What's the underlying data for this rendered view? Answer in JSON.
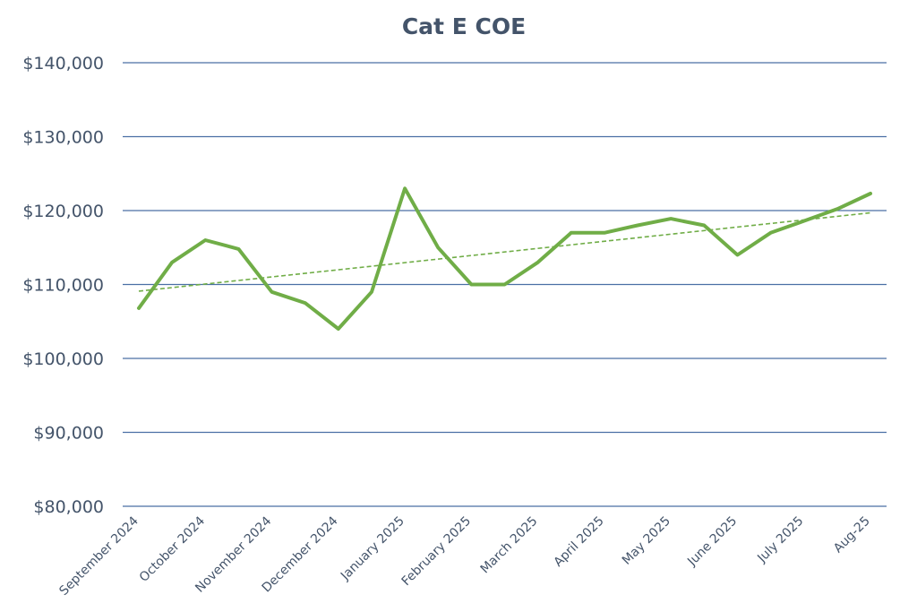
{
  "chart_data": {
    "type": "line",
    "title": "Cat E COE",
    "xlabel": "",
    "ylabel": "",
    "ylim": [
      80000,
      140000
    ],
    "y_ticks": [
      80000,
      90000,
      100000,
      110000,
      120000,
      130000,
      140000
    ],
    "y_tick_labels": [
      "$80,000",
      "$90,000",
      "$100,000",
      "$110,000",
      "$120,000",
      "$130,000",
      "$140,000"
    ],
    "x_tick_labels": [
      "September 2024",
      "October 2024",
      "November 2024",
      "December 2024",
      "January 2025",
      "February 2025",
      "March 2025",
      "April 2025",
      "May 2025",
      "June 2025",
      "July 2025",
      "Aug-25"
    ],
    "grid": "horizontal",
    "legend": "none",
    "series": [
      {
        "color": "#70ad47",
        "values": [
          106800,
          113000,
          116000,
          114800,
          109000,
          107500,
          104000,
          109000,
          123000,
          115000,
          110000,
          110000,
          113000,
          117000,
          117000,
          118000,
          118900,
          118000,
          114000,
          117000,
          118600,
          120200,
          122300
        ]
      }
    ],
    "trendline": {
      "type": "linear",
      "style": "dashed",
      "color": "#70ad47",
      "start": 109100,
      "end": 119700
    }
  }
}
